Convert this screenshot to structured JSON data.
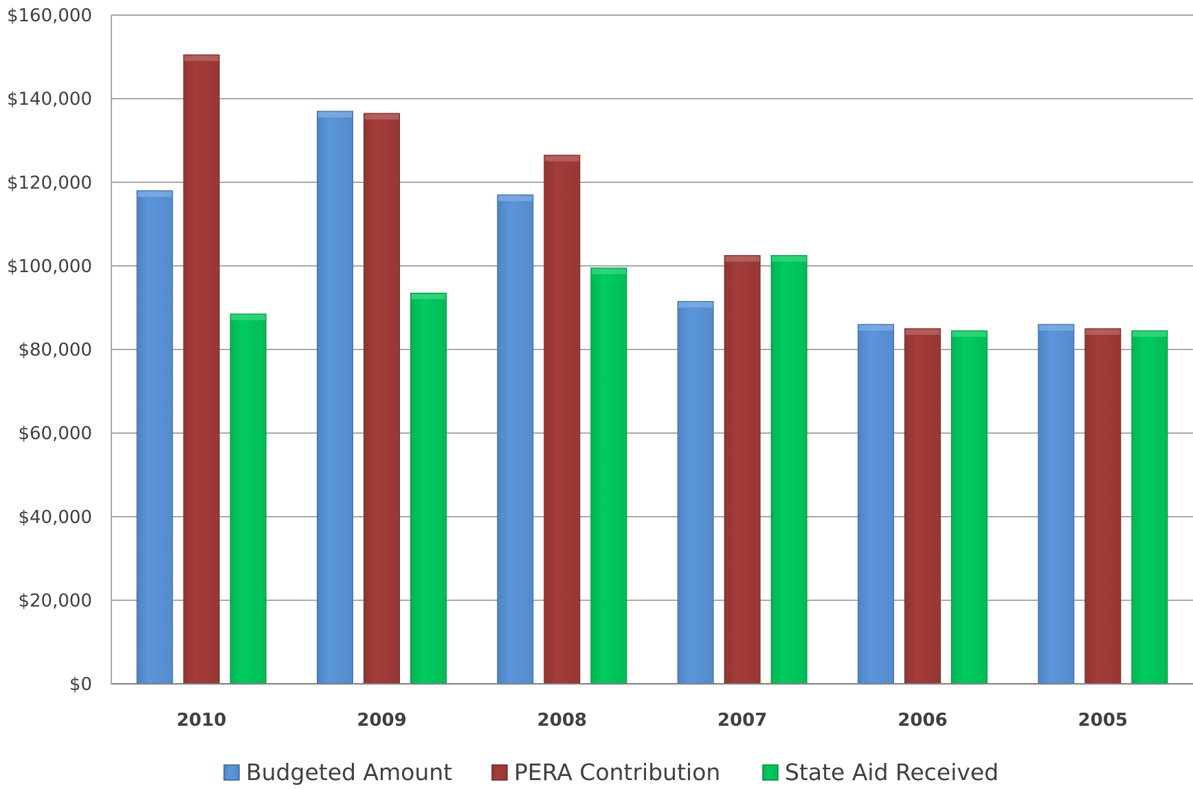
{
  "chart_data": {
    "type": "bar",
    "categories": [
      "2010",
      "2009",
      "2008",
      "2007",
      "2006",
      "2005"
    ],
    "series": [
      {
        "name": "Budgeted Amount",
        "color": "#5B96DC",
        "values": [
          118000,
          137000,
          117000,
          91500,
          86000,
          86000
        ]
      },
      {
        "name": "PERA Contribution",
        "color": "#A43C3A",
        "values": [
          150500,
          136500,
          126500,
          102500,
          85000,
          85000
        ]
      },
      {
        "name": "State Aid Received",
        "color": "#00CC5E",
        "values": [
          88500,
          93500,
          99500,
          102500,
          84500,
          84500
        ]
      }
    ],
    "ylim": [
      0,
      160000
    ],
    "y_ticks": [
      0,
      20000,
      40000,
      60000,
      80000,
      100000,
      120000,
      140000,
      160000
    ],
    "y_tick_labels": [
      "$0",
      "$20,000",
      "$40,000",
      "$60,000",
      "$80,000",
      "$100,000",
      "$120,000",
      "$140,000",
      "$160,000"
    ],
    "grid": true,
    "legend_position": "bottom"
  }
}
